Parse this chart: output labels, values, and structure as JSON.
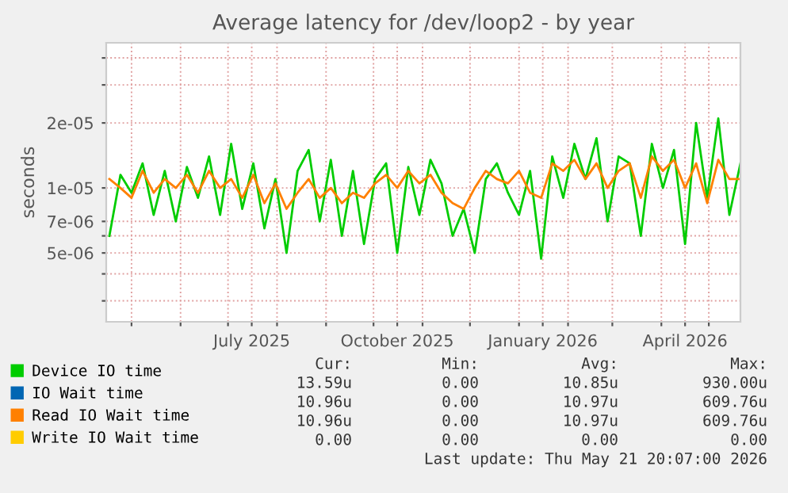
{
  "chart_data": {
    "type": "line",
    "title": "Average latency for /dev/loop2 - by year",
    "ylabel": "seconds",
    "log": "y",
    "grid": true,
    "legend": "bottom",
    "marker": "none",
    "line_style": "solid",
    "x": [
      "2025-04-17",
      "2025-04-24",
      "2025-05-01",
      "2025-05-08",
      "2025-05-15",
      "2025-05-22",
      "2025-05-29",
      "2025-06-05",
      "2025-06-12",
      "2025-06-19",
      "2025-06-26",
      "2025-07-03",
      "2025-07-10",
      "2025-07-17",
      "2025-07-24",
      "2025-07-31",
      "2025-08-07",
      "2025-08-14",
      "2025-08-21",
      "2025-08-28",
      "2025-09-04",
      "2025-09-11",
      "2025-09-18",
      "2025-09-25",
      "2025-10-02",
      "2025-10-09",
      "2025-10-16",
      "2025-10-23",
      "2025-10-30",
      "2025-11-06",
      "2025-11-13",
      "2025-11-20",
      "2025-11-27",
      "2025-12-04",
      "2025-12-11",
      "2025-12-18",
      "2025-12-25",
      "2026-01-01",
      "2026-01-08",
      "2026-01-15",
      "2026-01-22",
      "2026-01-29",
      "2026-02-05",
      "2026-02-12",
      "2026-02-19",
      "2026-02-26",
      "2026-03-05",
      "2026-03-12",
      "2026-03-19",
      "2026-03-26",
      "2026-04-02",
      "2026-04-09",
      "2026-04-16",
      "2026-04-23",
      "2026-04-30",
      "2026-05-07",
      "2026-05-14",
      "2026-05-21"
    ],
    "xlim": [
      "2025-04-15",
      "2026-05-21"
    ],
    "xticks": [
      {
        "value": "2025-05-01",
        "label": null
      },
      {
        "value": "2025-06-01",
        "label": null
      },
      {
        "value": "2025-07-01",
        "label": null
      },
      {
        "value": "2025-07-16",
        "label": "July 2025"
      },
      {
        "value": "2025-08-01",
        "label": null
      },
      {
        "value": "2025-09-01",
        "label": null
      },
      {
        "value": "2025-10-01",
        "label": null
      },
      {
        "value": "2025-10-16",
        "label": "October 2025"
      },
      {
        "value": "2025-11-01",
        "label": null
      },
      {
        "value": "2025-12-01",
        "label": null
      },
      {
        "value": "2026-01-01",
        "label": null
      },
      {
        "value": "2026-01-16",
        "label": "January 2026"
      },
      {
        "value": "2026-02-01",
        "label": null
      },
      {
        "value": "2026-03-01",
        "label": null
      },
      {
        "value": "2026-04-01",
        "label": null
      },
      {
        "value": "2026-04-16",
        "label": "April 2026"
      },
      {
        "value": "2026-05-01",
        "label": null
      }
    ],
    "ylim": [
      2.4e-06,
      4.7e-05
    ],
    "yticks": [
      {
        "value": 3e-06,
        "label": null
      },
      {
        "value": 4e-06,
        "label": null
      },
      {
        "value": 5e-06,
        "label": "5e-06"
      },
      {
        "value": 6e-06,
        "label": null
      },
      {
        "value": 7e-06,
        "label": "7e-06"
      },
      {
        "value": 1e-05,
        "label": "1e-05"
      },
      {
        "value": 2e-05,
        "label": "2e-05"
      },
      {
        "value": 3e-05,
        "label": null
      },
      {
        "value": 4e-05,
        "label": null
      }
    ],
    "series": [
      {
        "name": "Device IO time",
        "color": "#00cc00",
        "values": [
          6e-06,
          1.15e-05,
          9.5e-06,
          1.3e-05,
          7.5e-06,
          1.2e-05,
          7e-06,
          1.25e-05,
          9e-06,
          1.4e-05,
          7.5e-06,
          1.6e-05,
          8e-06,
          1.3e-05,
          6.5e-06,
          1.1e-05,
          5e-06,
          1.2e-05,
          1.5e-05,
          7e-06,
          1.35e-05,
          6e-06,
          1.2e-05,
          5.5e-06,
          1.1e-05,
          1.3e-05,
          5e-06,
          1.25e-05,
          7.5e-06,
          1.35e-05,
          1.05e-05,
          6e-06,
          8e-06,
          5e-06,
          1.1e-05,
          1.3e-05,
          9.5e-06,
          7.5e-06,
          1.2e-05,
          4.7e-06,
          1.4e-05,
          9e-06,
          1.6e-05,
          1.1e-05,
          1.7e-05,
          7e-06,
          1.4e-05,
          1.3e-05,
          6e-06,
          1.6e-05,
          1e-05,
          1.5e-05,
          5.5e-06,
          2e-05,
          9e-06,
          2.1e-05,
          7.5e-06,
          1.3e-05
        ]
      },
      {
        "name": "IO Wait time",
        "color": "#0066b3",
        "values": [
          null,
          null,
          null,
          null,
          null,
          null,
          null,
          null,
          null,
          null,
          null,
          null,
          null,
          null,
          null,
          null,
          null,
          null,
          null,
          null,
          null,
          null,
          null,
          null,
          null,
          null,
          null,
          null,
          null,
          null,
          null,
          null,
          null,
          null,
          null,
          null,
          null,
          null,
          null,
          null,
          null,
          null,
          null,
          null,
          null,
          null,
          null,
          null,
          null,
          null,
          null,
          null,
          null,
          null,
          null,
          null,
          null,
          null
        ]
      },
      {
        "name": "Read IO Wait time",
        "color": "#ff8000",
        "values": [
          1.1e-05,
          1e-05,
          9e-06,
          1.2e-05,
          9.5e-06,
          1.1e-05,
          1e-05,
          1.15e-05,
          9.5e-06,
          1.2e-05,
          1e-05,
          1.1e-05,
          9e-06,
          1.15e-05,
          8.5e-06,
          1.05e-05,
          8e-06,
          9.5e-06,
          1.1e-05,
          9e-06,
          1e-05,
          8.5e-06,
          9.5e-06,
          9e-06,
          1.05e-05,
          1.15e-05,
          1e-05,
          1.2e-05,
          1.05e-05,
          1.15e-05,
          9.5e-06,
          8.5e-06,
          8e-06,
          1e-05,
          1.2e-05,
          1.1e-05,
          1.05e-05,
          1.2e-05,
          9.5e-06,
          9e-06,
          1.3e-05,
          1.2e-05,
          1.35e-05,
          1.1e-05,
          1.3e-05,
          1e-05,
          1.2e-05,
          1.3e-05,
          9e-06,
          1.4e-05,
          1.2e-05,
          1.35e-05,
          1e-05,
          1.3e-05,
          8.5e-06,
          1.35e-05,
          1.1e-05,
          1.1e-05
        ]
      },
      {
        "name": "Write IO Wait time",
        "color": "#ffcc00",
        "values": [
          null,
          null,
          null,
          null,
          null,
          null,
          null,
          null,
          null,
          null,
          null,
          null,
          null,
          null,
          null,
          null,
          null,
          null,
          null,
          null,
          null,
          null,
          null,
          null,
          null,
          null,
          null,
          null,
          null,
          null,
          null,
          null,
          null,
          null,
          null,
          null,
          null,
          null,
          null,
          null,
          null,
          null,
          null,
          null,
          null,
          null,
          null,
          null,
          null,
          null,
          null,
          null,
          null,
          null,
          null,
          null,
          null,
          null
        ]
      }
    ],
    "annotations": [
      "Cur:",
      "Min:",
      "Avg:",
      "Max:",
      "13.59u",
      "0.00",
      "10.85u",
      "930.00u",
      "10.96u",
      "0.00",
      "10.97u",
      "609.76u",
      "10.96u",
      "0.00",
      "10.97u",
      "609.76u",
      "0.00",
      "0.00",
      "0.00",
      "0.00",
      "Last update: Thu May 21 20:07:00 2026"
    ]
  }
}
